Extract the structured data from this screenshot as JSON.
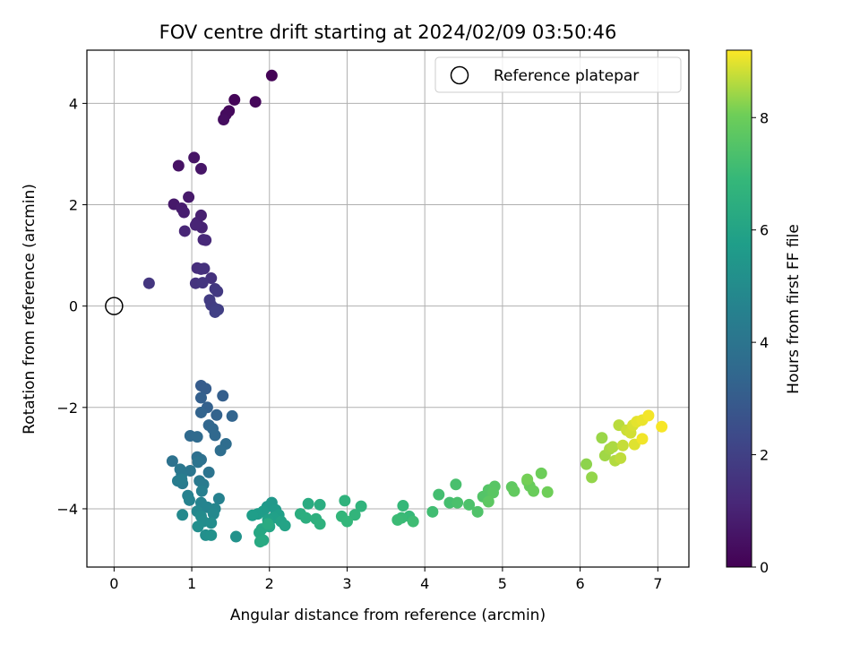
{
  "chart_data": {
    "type": "scatter",
    "title": "FOV centre drift starting at 2024/02/09 03:50:46",
    "xlabel": "Angular distance from reference (arcmin)",
    "ylabel": "Rotation from reference (arcmin)",
    "xlim": [
      -0.35,
      7.4
    ],
    "ylim": [
      -5.15,
      5.05
    ],
    "xticks": [
      0,
      1,
      2,
      3,
      4,
      5,
      6,
      7
    ],
    "yticks": [
      -4,
      -2,
      0,
      2,
      4
    ],
    "grid": true,
    "legend": {
      "position": "top-right",
      "entries": [
        "Reference platepar"
      ]
    },
    "reference_point": {
      "x": 0,
      "y": 0,
      "label": "Reference platepar"
    },
    "colorbar": {
      "label": "Hours from first FF file",
      "min": 0,
      "max": 9.2,
      "ticks": [
        0,
        2,
        4,
        6,
        8
      ],
      "colormap": "viridis"
    },
    "points": [
      [
        2.03,
        4.55,
        0.05
      ],
      [
        1.55,
        4.07,
        0.12
      ],
      [
        1.82,
        4.03,
        0.18
      ],
      [
        1.48,
        3.85,
        0.25
      ],
      [
        1.44,
        3.78,
        0.3
      ],
      [
        1.41,
        3.68,
        0.36
      ],
      [
        0.83,
        2.77,
        0.5
      ],
      [
        1.03,
        2.93,
        0.55
      ],
      [
        1.12,
        2.71,
        0.6
      ],
      [
        0.77,
        2.01,
        0.7
      ],
      [
        0.96,
        2.15,
        0.75
      ],
      [
        0.87,
        1.93,
        0.8
      ],
      [
        0.9,
        1.85,
        0.85
      ],
      [
        1.12,
        1.79,
        0.9
      ],
      [
        1.07,
        1.65,
        0.95
      ],
      [
        1.13,
        1.55,
        1.0
      ],
      [
        1.05,
        1.6,
        1.05
      ],
      [
        0.91,
        1.48,
        1.1
      ],
      [
        1.15,
        1.31,
        1.15
      ],
      [
        1.18,
        1.3,
        1.2
      ],
      [
        1.07,
        0.75,
        1.35
      ],
      [
        1.12,
        0.73,
        1.4
      ],
      [
        1.16,
        0.74,
        1.45
      ],
      [
        1.25,
        0.55,
        1.5
      ],
      [
        1.05,
        0.45,
        1.55
      ],
      [
        1.14,
        0.46,
        1.6
      ],
      [
        0.45,
        0.45,
        1.65
      ],
      [
        1.3,
        0.34,
        1.7
      ],
      [
        1.33,
        0.29,
        1.75
      ],
      [
        1.23,
        0.12,
        1.8
      ],
      [
        1.25,
        0.02,
        1.85
      ],
      [
        1.3,
        -0.05,
        1.9
      ],
      [
        1.34,
        -0.07,
        1.95
      ],
      [
        1.3,
        -0.12,
        2.0
      ],
      [
        1.12,
        -1.57,
        3.0
      ],
      [
        1.18,
        -1.63,
        3.05
      ],
      [
        1.4,
        -1.77,
        3.1
      ],
      [
        1.12,
        -1.81,
        3.15
      ],
      [
        1.2,
        -2.0,
        3.2
      ],
      [
        1.32,
        -2.15,
        3.25
      ],
      [
        1.12,
        -2.1,
        3.3
      ],
      [
        1.52,
        -2.17,
        3.35
      ],
      [
        1.22,
        -2.35,
        3.4
      ],
      [
        1.27,
        -2.42,
        3.45
      ],
      [
        1.3,
        -2.55,
        3.5
      ],
      [
        0.98,
        -2.56,
        3.55
      ],
      [
        1.07,
        -2.58,
        3.6
      ],
      [
        1.44,
        -2.72,
        3.65
      ],
      [
        1.37,
        -2.85,
        3.7
      ],
      [
        1.07,
        -2.98,
        3.75
      ],
      [
        1.12,
        -3.03,
        3.8
      ],
      [
        0.75,
        -3.06,
        3.9
      ],
      [
        1.08,
        -3.08,
        3.95
      ],
      [
        1.22,
        -3.28,
        4.0
      ],
      [
        0.98,
        -3.25,
        4.05
      ],
      [
        0.85,
        -3.22,
        4.1
      ],
      [
        0.87,
        -3.32,
        4.15
      ],
      [
        1.1,
        -3.45,
        4.2
      ],
      [
        0.88,
        -3.5,
        4.25
      ],
      [
        1.15,
        -3.52,
        4.3
      ],
      [
        0.82,
        -3.45,
        4.35
      ],
      [
        0.87,
        -3.42,
        4.4
      ],
      [
        1.13,
        -3.65,
        4.45
      ],
      [
        0.95,
        -3.74,
        4.5
      ],
      [
        1.35,
        -3.8,
        4.55
      ],
      [
        0.97,
        -3.83,
        4.6
      ],
      [
        1.12,
        -3.88,
        4.65
      ],
      [
        1.2,
        -3.97,
        4.7
      ],
      [
        1.3,
        -4.0,
        4.75
      ],
      [
        1.07,
        -4.05,
        4.8
      ],
      [
        1.28,
        -4.1,
        4.85
      ],
      [
        0.88,
        -4.12,
        4.9
      ],
      [
        1.12,
        -4.15,
        4.95
      ],
      [
        1.15,
        -4.25,
        5.0
      ],
      [
        1.25,
        -4.28,
        5.05
      ],
      [
        1.08,
        -4.35,
        5.1
      ],
      [
        1.18,
        -4.52,
        5.15
      ],
      [
        1.25,
        -4.52,
        5.2
      ],
      [
        1.57,
        -4.55,
        5.25
      ],
      [
        2.03,
        -3.88,
        5.5
      ],
      [
        1.97,
        -3.96,
        5.55
      ],
      [
        2.08,
        -4.02,
        5.6
      ],
      [
        1.92,
        -4.05,
        5.65
      ],
      [
        1.85,
        -4.1,
        5.7
      ],
      [
        1.78,
        -4.13,
        5.75
      ],
      [
        2.12,
        -4.12,
        5.8
      ],
      [
        2.05,
        -4.18,
        5.85
      ],
      [
        1.98,
        -4.22,
        5.9
      ],
      [
        2.15,
        -4.25,
        5.95
      ],
      [
        2.2,
        -4.33,
        6.0
      ],
      [
        2.0,
        -4.35,
        6.05
      ],
      [
        1.9,
        -4.4,
        6.1
      ],
      [
        1.87,
        -4.47,
        6.15
      ],
      [
        1.92,
        -4.62,
        6.2
      ],
      [
        1.88,
        -4.65,
        6.25
      ],
      [
        1.98,
        -4.3,
        6.3
      ],
      [
        2.5,
        -3.9,
        6.35
      ],
      [
        2.65,
        -3.92,
        6.4
      ],
      [
        2.4,
        -4.1,
        6.45
      ],
      [
        2.47,
        -4.18,
        6.5
      ],
      [
        2.6,
        -4.2,
        6.55
      ],
      [
        2.65,
        -4.3,
        6.6
      ],
      [
        2.97,
        -3.84,
        6.65
      ],
      [
        3.18,
        -3.95,
        6.7
      ],
      [
        3.1,
        -4.12,
        6.75
      ],
      [
        2.93,
        -4.15,
        6.8
      ],
      [
        3.0,
        -4.25,
        6.85
      ],
      [
        3.72,
        -3.94,
        6.9
      ],
      [
        3.8,
        -4.15,
        6.95
      ],
      [
        3.7,
        -4.18,
        7.0
      ],
      [
        3.65,
        -4.22,
        7.05
      ],
      [
        3.85,
        -4.25,
        7.1
      ],
      [
        4.1,
        -4.06,
        7.15
      ],
      [
        4.18,
        -3.72,
        7.2
      ],
      [
        4.32,
        -3.88,
        7.25
      ],
      [
        4.4,
        -3.52,
        7.3
      ],
      [
        4.42,
        -3.88,
        7.35
      ],
      [
        4.57,
        -3.92,
        7.4
      ],
      [
        4.68,
        -4.06,
        7.45
      ],
      [
        4.75,
        -3.76,
        7.5
      ],
      [
        4.82,
        -3.63,
        7.55
      ],
      [
        4.9,
        -3.56,
        7.6
      ],
      [
        4.88,
        -3.68,
        7.65
      ],
      [
        4.82,
        -3.86,
        7.7
      ],
      [
        5.12,
        -3.57,
        7.75
      ],
      [
        5.15,
        -3.65,
        7.8
      ],
      [
        5.32,
        -3.45,
        7.85
      ],
      [
        5.35,
        -3.55,
        7.9
      ],
      [
        5.4,
        -3.65,
        7.95
      ],
      [
        5.5,
        -3.3,
        8.0
      ],
      [
        5.58,
        -3.67,
        8.05
      ],
      [
        5.32,
        -3.42,
        8.1
      ],
      [
        6.08,
        -3.12,
        8.3
      ],
      [
        6.15,
        -3.38,
        8.35
      ],
      [
        6.28,
        -2.6,
        8.4
      ],
      [
        6.32,
        -2.95,
        8.45
      ],
      [
        6.38,
        -2.82,
        8.5
      ],
      [
        6.42,
        -2.78,
        8.55
      ],
      [
        6.45,
        -3.05,
        8.6
      ],
      [
        6.5,
        -2.35,
        8.65
      ],
      [
        6.52,
        -3.0,
        8.7
      ],
      [
        6.55,
        -2.75,
        8.75
      ],
      [
        6.6,
        -2.45,
        8.8
      ],
      [
        6.65,
        -2.5,
        8.85
      ],
      [
        6.68,
        -2.35,
        8.9
      ],
      [
        6.7,
        -2.73,
        8.95
      ],
      [
        6.73,
        -2.28,
        9.0
      ],
      [
        6.8,
        -2.25,
        9.05
      ],
      [
        6.8,
        -2.62,
        9.1
      ],
      [
        6.88,
        -2.16,
        9.12
      ],
      [
        7.05,
        -2.38,
        9.15
      ]
    ]
  }
}
